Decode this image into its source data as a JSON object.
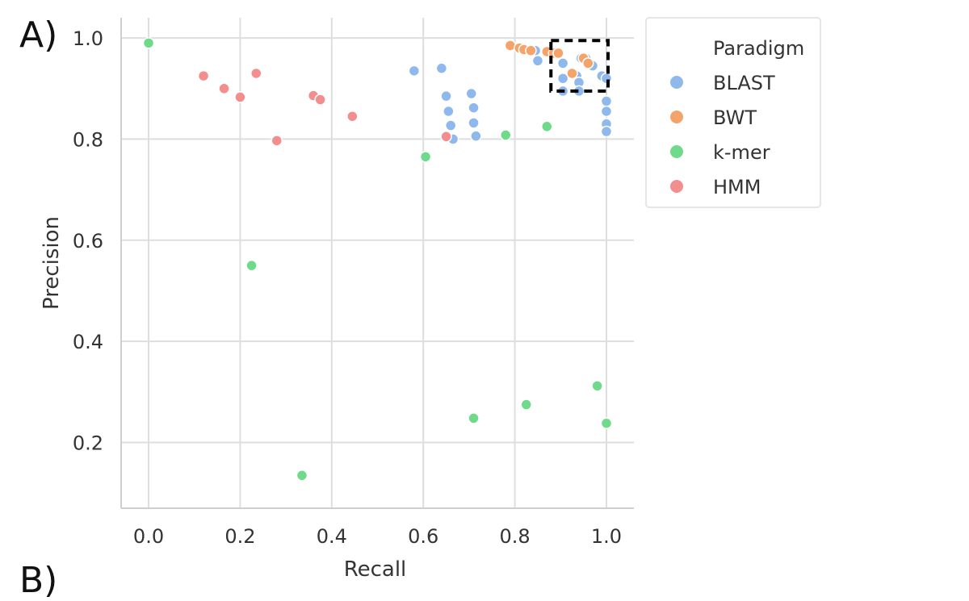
{
  "panel_label": "A)",
  "next_panel_label": "B)",
  "chart_data": {
    "type": "scatter",
    "xlabel": "Recall",
    "ylabel": "Precision",
    "xlim": [
      -0.06,
      1.06
    ],
    "ylim": [
      0.07,
      1.04
    ],
    "x_ticks": [
      0.0,
      0.2,
      0.4,
      0.6,
      0.8,
      1.0
    ],
    "x_tick_labels": [
      "0.0",
      "0.2",
      "0.4",
      "0.6",
      "0.8",
      "1.0"
    ],
    "y_ticks": [
      0.2,
      0.4,
      0.6,
      0.8,
      1.0
    ],
    "y_tick_labels": [
      "0.2",
      "0.4",
      "0.6",
      "0.8",
      "1.0"
    ],
    "grid": true,
    "legend": {
      "title": "Paradigm",
      "placement": "outside-top-right"
    },
    "zoom_box": {
      "x": [
        0.9,
        1.0
      ],
      "y": [
        0.895,
        0.995
      ]
    },
    "series": [
      {
        "name": "BLAST",
        "color": "#8fb9ec",
        "points": [
          [
            0.58,
            0.935
          ],
          [
            0.64,
            0.94
          ],
          [
            0.65,
            0.885
          ],
          [
            0.655,
            0.855
          ],
          [
            0.66,
            0.827
          ],
          [
            0.665,
            0.8
          ],
          [
            0.705,
            0.89
          ],
          [
            0.71,
            0.862
          ],
          [
            0.71,
            0.832
          ],
          [
            0.715,
            0.806
          ],
          [
            0.845,
            0.975
          ],
          [
            0.85,
            0.955
          ],
          [
            0.905,
            0.95
          ],
          [
            0.905,
            0.92
          ],
          [
            0.905,
            0.895
          ],
          [
            0.935,
            0.925
          ],
          [
            0.94,
            0.912
          ],
          [
            0.94,
            0.895
          ],
          [
            0.945,
            0.96
          ],
          [
            0.955,
            0.96
          ],
          [
            0.97,
            0.945
          ],
          [
            0.99,
            0.925
          ],
          [
            1.0,
            0.92
          ],
          [
            1.0,
            0.875
          ],
          [
            1.0,
            0.855
          ],
          [
            1.0,
            0.83
          ],
          [
            1.0,
            0.815
          ]
        ]
      },
      {
        "name": "BWT",
        "color": "#f4a46a",
        "points": [
          [
            0.79,
            0.985
          ],
          [
            0.81,
            0.98
          ],
          [
            0.82,
            0.977
          ],
          [
            0.835,
            0.975
          ],
          [
            0.87,
            0.973
          ],
          [
            0.885,
            0.97
          ],
          [
            0.895,
            0.97
          ],
          [
            0.925,
            0.93
          ],
          [
            0.95,
            0.96
          ],
          [
            0.96,
            0.95
          ]
        ]
      },
      {
        "name": "k-mer",
        "color": "#6fdb8a",
        "points": [
          [
            0.0,
            0.99
          ],
          [
            0.225,
            0.55
          ],
          [
            0.335,
            0.135
          ],
          [
            0.605,
            0.765
          ],
          [
            0.71,
            0.248
          ],
          [
            0.78,
            0.808
          ],
          [
            0.825,
            0.275
          ],
          [
            0.87,
            0.825
          ],
          [
            0.98,
            0.312
          ],
          [
            1.0,
            0.238
          ]
        ]
      },
      {
        "name": "HMM",
        "color": "#f38e8e",
        "points": [
          [
            0.12,
            0.925
          ],
          [
            0.165,
            0.9
          ],
          [
            0.2,
            0.883
          ],
          [
            0.235,
            0.93
          ],
          [
            0.28,
            0.797
          ],
          [
            0.36,
            0.886
          ],
          [
            0.375,
            0.878
          ],
          [
            0.445,
            0.845
          ],
          [
            0.65,
            0.805
          ]
        ]
      }
    ]
  }
}
